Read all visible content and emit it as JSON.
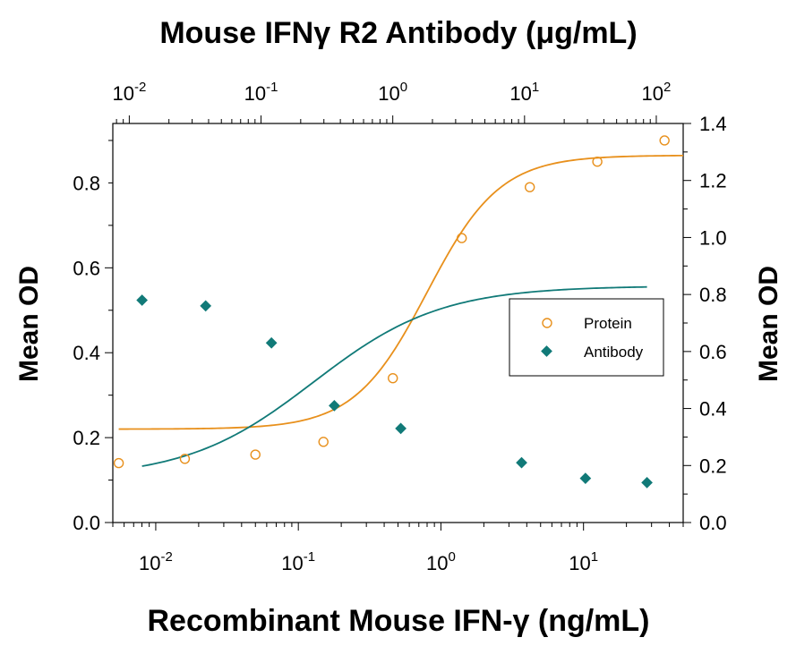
{
  "chart_data": {
    "type": "scatter",
    "title": "Mouse IFNγ R2 Antibody (μg/mL)",
    "xlabel": "Recombinant Mouse IFN-γ (ng/mL)",
    "ylabel_left": "Mean OD",
    "ylabel_right": "Mean OD",
    "x_scale": "log",
    "x_bottom_range": [
      0.005,
      50
    ],
    "x_top_range": [
      0.0075,
      160
    ],
    "y_left_range": [
      0,
      0.94
    ],
    "y_right_range": [
      0,
      1.4
    ],
    "x_bottom_ticks": [
      {
        "v": 0.01,
        "b": "10",
        "e": "-2"
      },
      {
        "v": 0.1,
        "b": "10",
        "e": "-1"
      },
      {
        "v": 1,
        "b": "10",
        "e": "0"
      },
      {
        "v": 10,
        "b": "10",
        "e": "1"
      }
    ],
    "x_top_ticks": [
      {
        "v": 0.01,
        "b": "10",
        "e": "-2"
      },
      {
        "v": 0.1,
        "b": "10",
        "e": "-1"
      },
      {
        "v": 1,
        "b": "10",
        "e": "0"
      },
      {
        "v": 10,
        "b": "10",
        "e": "1"
      },
      {
        "v": 100,
        "b": "10",
        "e": "2"
      }
    ],
    "y_left_ticks": [
      "0.0",
      "0.2",
      "0.4",
      "0.6",
      "0.8"
    ],
    "y_right_ticks": [
      "0.0",
      "0.2",
      "0.4",
      "0.6",
      "0.8",
      "1.0",
      "1.2",
      "1.4"
    ],
    "legend_position": "right-center",
    "series": [
      {
        "name": "Protein",
        "axis": "bottom-left",
        "marker": "open-circle",
        "color": "#e8901c",
        "x": [
          0.0055,
          0.016,
          0.05,
          0.15,
          0.46,
          1.4,
          4.2,
          12.5,
          37
        ],
        "y": [
          0.14,
          0.15,
          0.16,
          0.19,
          0.34,
          0.67,
          0.79,
          0.85,
          0.9
        ],
        "fit": {
          "bottom": 0.22,
          "top": 0.865,
          "ec50": 0.8,
          "hill": 1.7
        }
      },
      {
        "name": "Antibody",
        "axis": "top-right",
        "marker": "filled-diamond",
        "color": "#117a78",
        "x": [
          0.0125,
          0.038,
          0.12,
          0.36,
          1.15,
          9.5,
          29,
          85
        ],
        "y": [
          0.78,
          0.76,
          0.63,
          0.41,
          0.33,
          0.21,
          0.155,
          0.14
        ],
        "fit": {
          "bottom": 0.155,
          "top": 0.83,
          "ec50": 0.25,
          "hill": 0.9
        }
      }
    ]
  }
}
